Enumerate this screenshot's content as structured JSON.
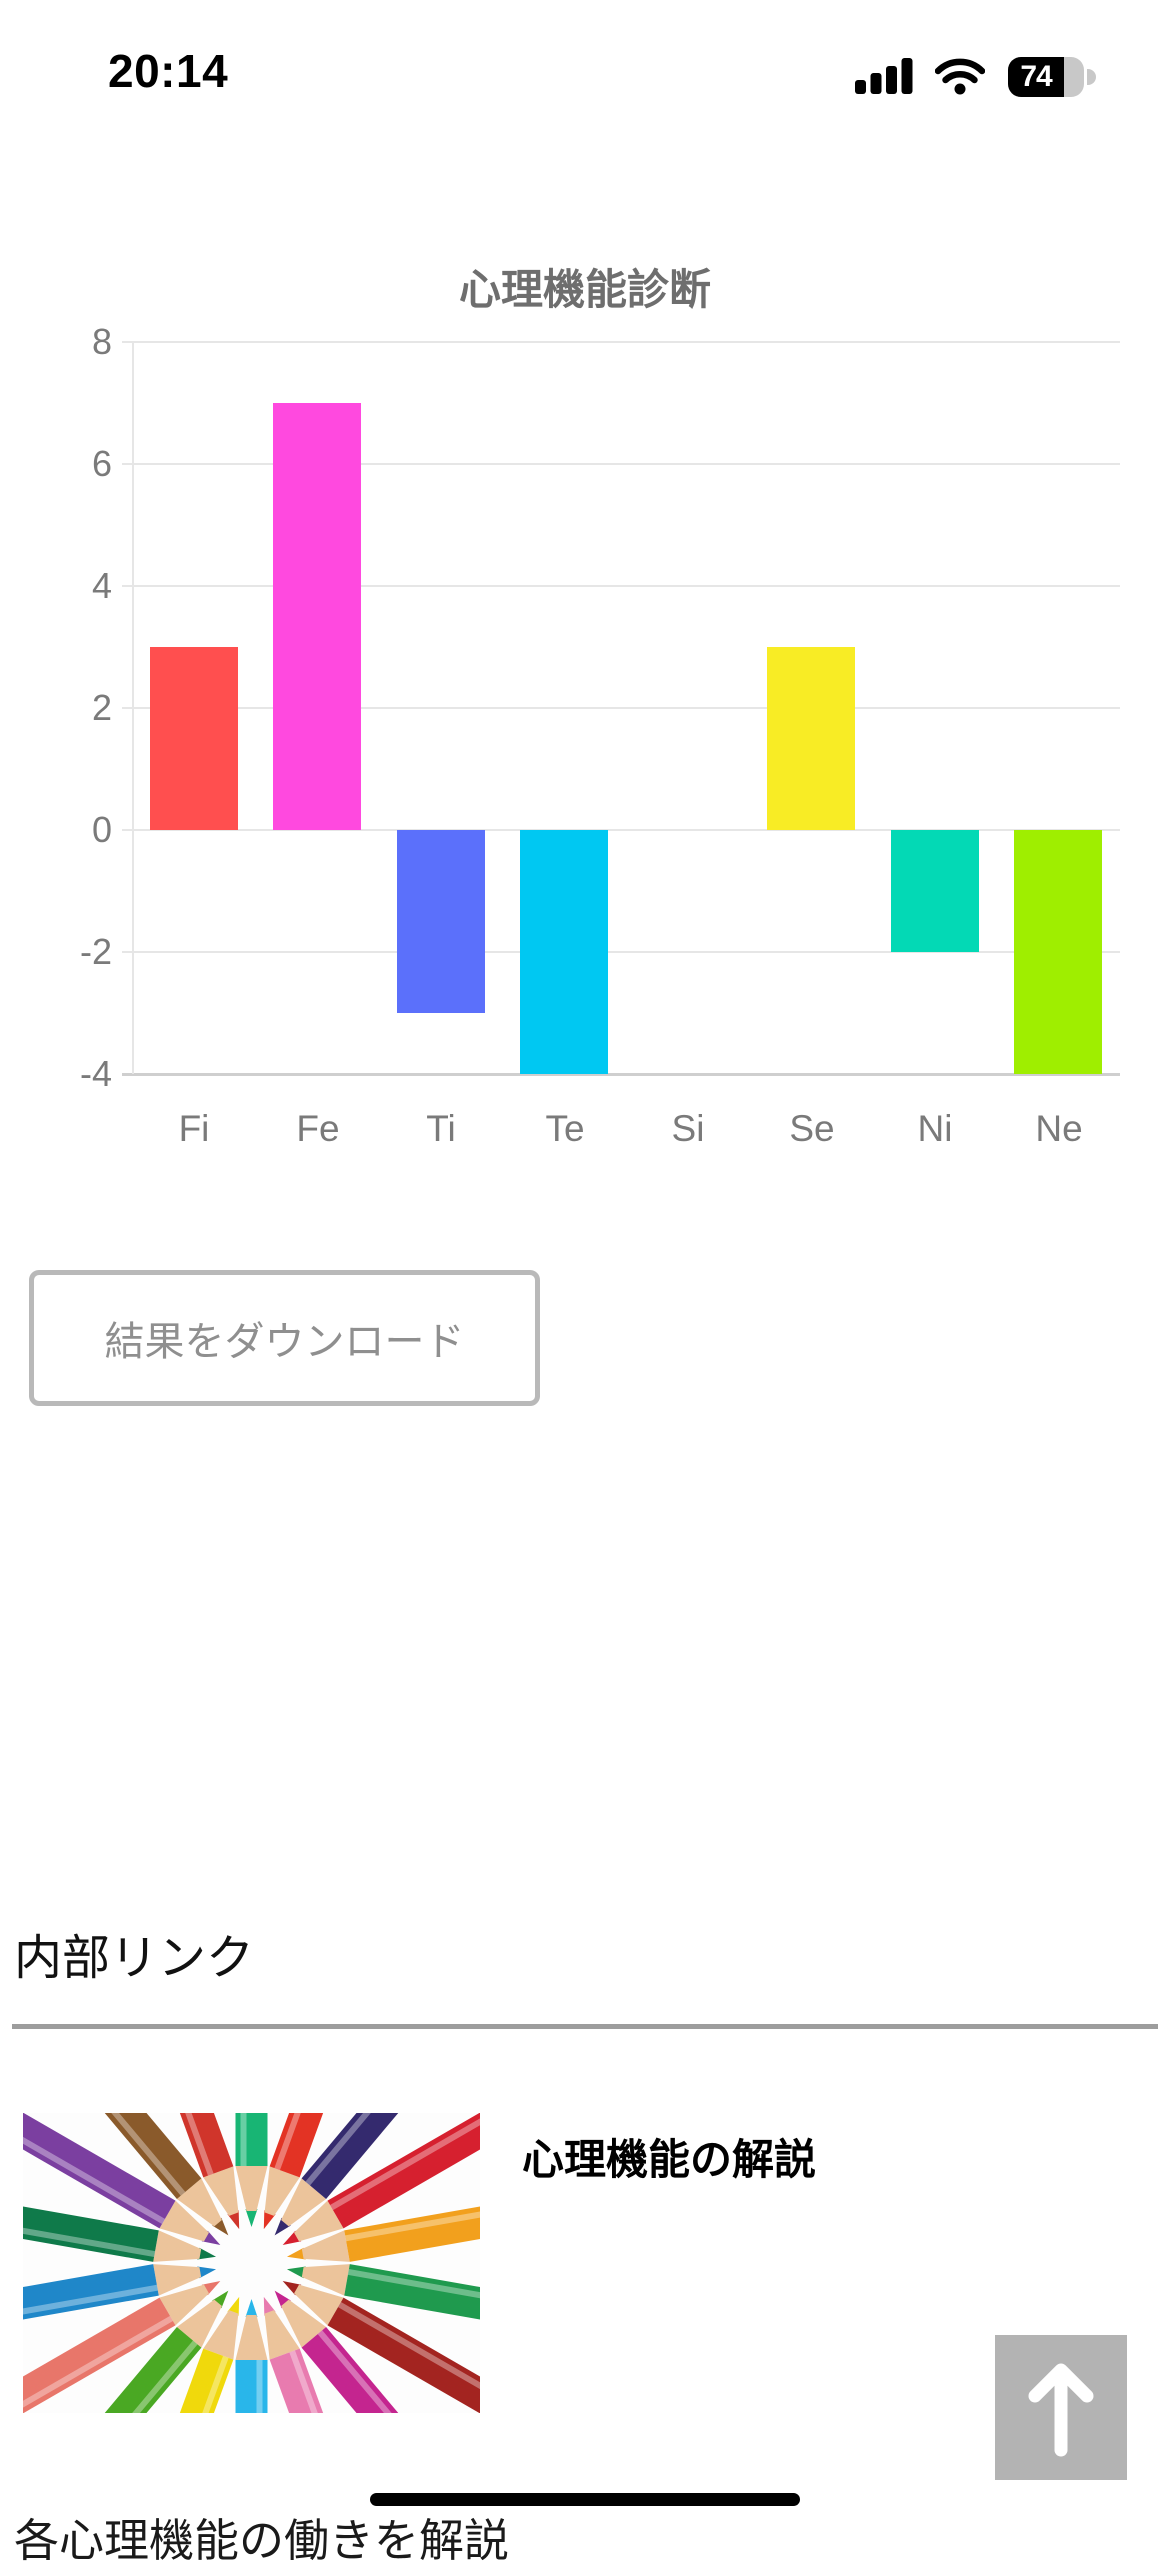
{
  "status_bar": {
    "time": "20:14",
    "battery_percent": "74"
  },
  "chart_data": {
    "type": "bar",
    "title": "心理機能診断",
    "categories": [
      "Fi",
      "Fe",
      "Ti",
      "Te",
      "Si",
      "Se",
      "Ni",
      "Ne"
    ],
    "values": [
      3,
      7,
      -3,
      -4,
      0,
      3,
      -2,
      -4
    ],
    "bar_colors": [
      "#ff4f4f",
      "#ff49df",
      "#5b70fb",
      "#00c8f2",
      "#cccccc",
      "#f8ec25",
      "#03d9b5",
      "#9fee00"
    ],
    "xlabel": "",
    "ylabel": "",
    "ylim": [
      -4,
      8
    ],
    "ytick_step": 2,
    "grid": true,
    "legend": "none",
    "grid_color": "#e6e6e6",
    "tick_color": "#7a7a7a",
    "title_color": "#6e6e6e"
  },
  "download_button": {
    "label": "結果をダウンロード"
  },
  "internal_links": {
    "heading": "内部リンク",
    "items": [
      {
        "title": "心理機能の解説",
        "description": "各心理機能の働きを解説",
        "thumbnail": "colored-pencils-image",
        "pencil_colors": [
          "#18b574",
          "#e33324",
          "#342a6e",
          "#d6202f",
          "#f2a01d",
          "#1f9a4e",
          "#a32420",
          "#c4258f",
          "#e87baf",
          "#29b6ea",
          "#f0d90c",
          "#4aa823",
          "#e8766a",
          "#1f87c9",
          "#0f7a4a",
          "#7b3fa0",
          "#8a5a2b",
          "#d0352b"
        ]
      }
    ]
  },
  "scroll_top_button": {
    "icon": "arrow-up-icon"
  }
}
